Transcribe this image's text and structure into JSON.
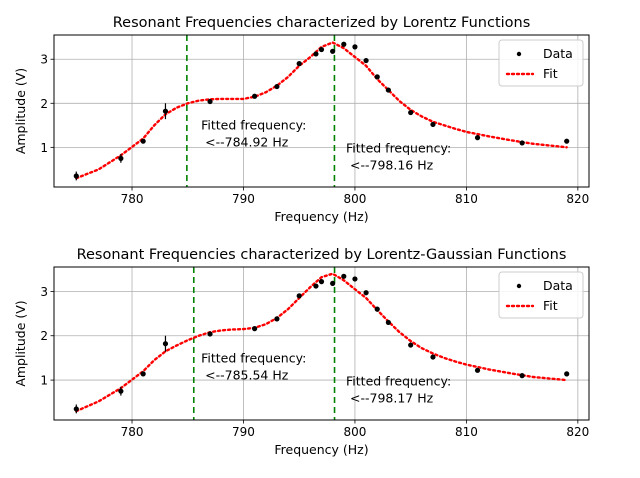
{
  "chart_data": [
    {
      "type": "scatter",
      "title": "Resonant Frequencies characterized by Lorentz Functions",
      "xlabel": "Frequency (Hz)",
      "ylabel": "Amplitude (V)",
      "xlim": [
        773,
        821
      ],
      "ylim": [
        0.1,
        3.55
      ],
      "xticks": [
        780,
        790,
        800,
        810,
        820
      ],
      "yticks": [
        1,
        2,
        3
      ],
      "grid": true,
      "legend": {
        "position": "top-right",
        "entries": [
          "Data",
          "Fit"
        ]
      },
      "series": [
        {
          "name": "Data",
          "style": "points",
          "color": "#000000",
          "x": [
            775,
            779,
            781,
            783,
            787,
            791,
            793,
            795,
            796.5,
            797,
            798,
            799,
            800,
            801,
            802,
            803,
            805,
            807,
            811,
            815,
            819
          ],
          "y": [
            0.35,
            0.75,
            1.14,
            1.82,
            2.04,
            2.16,
            2.38,
            2.9,
            3.12,
            3.22,
            3.18,
            3.34,
            3.28,
            2.97,
            2.6,
            2.3,
            1.79,
            1.52,
            1.22,
            1.1,
            1.14
          ],
          "err": [
            0.1,
            0.1,
            0.05,
            0.18,
            0.05,
            0.05,
            0.05,
            0.05,
            0.05,
            0.05,
            0.05,
            0.05,
            0.05,
            0.05,
            0.05,
            0.05,
            0.05,
            0.05,
            0.05,
            0.05,
            0.05
          ]
        },
        {
          "name": "Fit",
          "style": "dotted-line",
          "color": "#ff0000",
          "x": [
            775,
            777,
            779,
            781,
            782,
            783,
            784,
            785,
            786,
            787,
            788,
            789,
            790,
            791,
            792,
            793,
            794,
            795,
            796,
            797,
            798,
            799,
            800,
            801,
            802,
            803,
            804,
            805,
            806,
            807,
            808,
            809,
            810,
            812,
            814,
            816,
            819
          ],
          "y": [
            0.3,
            0.5,
            0.82,
            1.2,
            1.5,
            1.75,
            1.9,
            2.0,
            2.06,
            2.09,
            2.1,
            2.1,
            2.1,
            2.15,
            2.25,
            2.4,
            2.6,
            2.85,
            3.05,
            3.28,
            3.38,
            3.25,
            3.05,
            2.85,
            2.55,
            2.3,
            2.05,
            1.85,
            1.7,
            1.58,
            1.5,
            1.42,
            1.35,
            1.25,
            1.16,
            1.08,
            1.0
          ]
        }
      ],
      "vlines": [
        {
          "x": 784.92,
          "color": "#008000",
          "style": "dashed"
        },
        {
          "x": 798.16,
          "color": "#008000",
          "style": "dashed"
        }
      ],
      "annotations": [
        {
          "line1": "Fitted frequency:",
          "line2": "<--784.92 Hz",
          "x": 786.2,
          "y": 1.4
        },
        {
          "line1": "Fitted frequency:",
          "line2": "<--798.16 Hz",
          "x": 799.2,
          "y": 0.88
        }
      ]
    },
    {
      "type": "scatter",
      "title": "Resonant Frequencies characterized by Lorentz-Gaussian Functions",
      "xlabel": "Frequency (Hz)",
      "ylabel": "Amplitude (V)",
      "xlim": [
        773,
        821
      ],
      "ylim": [
        0.1,
        3.55
      ],
      "xticks": [
        780,
        790,
        800,
        810,
        820
      ],
      "yticks": [
        1,
        2,
        3
      ],
      "grid": true,
      "legend": {
        "position": "top-right",
        "entries": [
          "Data",
          "Fit"
        ]
      },
      "series": [
        {
          "name": "Data",
          "style": "points",
          "color": "#000000",
          "x": [
            775,
            779,
            781,
            783,
            787,
            791,
            793,
            795,
            796.5,
            797,
            798,
            799,
            800,
            801,
            802,
            803,
            805,
            807,
            811,
            815,
            819
          ],
          "y": [
            0.35,
            0.75,
            1.14,
            1.82,
            2.04,
            2.16,
            2.38,
            2.9,
            3.12,
            3.22,
            3.18,
            3.34,
            3.28,
            2.97,
            2.6,
            2.3,
            1.79,
            1.52,
            1.22,
            1.1,
            1.14
          ],
          "err": [
            0.1,
            0.1,
            0.05,
            0.18,
            0.05,
            0.05,
            0.05,
            0.05,
            0.05,
            0.05,
            0.05,
            0.05,
            0.05,
            0.05,
            0.05,
            0.05,
            0.05,
            0.05,
            0.05,
            0.05,
            0.05
          ]
        },
        {
          "name": "Fit",
          "style": "dotted-line",
          "color": "#ff0000",
          "x": [
            775,
            777,
            779,
            781,
            782,
            783,
            784,
            785,
            786,
            787,
            788,
            789,
            790,
            791,
            792,
            793,
            794,
            795,
            796,
            797,
            798,
            799,
            800,
            801,
            802,
            803,
            804,
            805,
            806,
            807,
            808,
            809,
            810,
            812,
            814,
            816,
            819
          ],
          "y": [
            0.3,
            0.52,
            0.82,
            1.2,
            1.45,
            1.65,
            1.78,
            1.9,
            2.0,
            2.08,
            2.12,
            2.14,
            2.15,
            2.18,
            2.26,
            2.4,
            2.6,
            2.85,
            3.1,
            3.32,
            3.4,
            3.25,
            3.05,
            2.85,
            2.58,
            2.32,
            2.08,
            1.88,
            1.72,
            1.6,
            1.5,
            1.42,
            1.35,
            1.24,
            1.15,
            1.07,
            1.0
          ]
        }
      ],
      "vlines": [
        {
          "x": 785.54,
          "color": "#008000",
          "style": "dashed"
        },
        {
          "x": 798.17,
          "color": "#008000",
          "style": "dashed"
        }
      ],
      "annotations": [
        {
          "line1": "Fitted frequency:",
          "line2": "<--785.54 Hz",
          "x": 786.2,
          "y": 1.4
        },
        {
          "line1": "Fitted frequency:",
          "line2": "<--798.17 Hz",
          "x": 799.2,
          "y": 0.88
        }
      ]
    }
  ]
}
